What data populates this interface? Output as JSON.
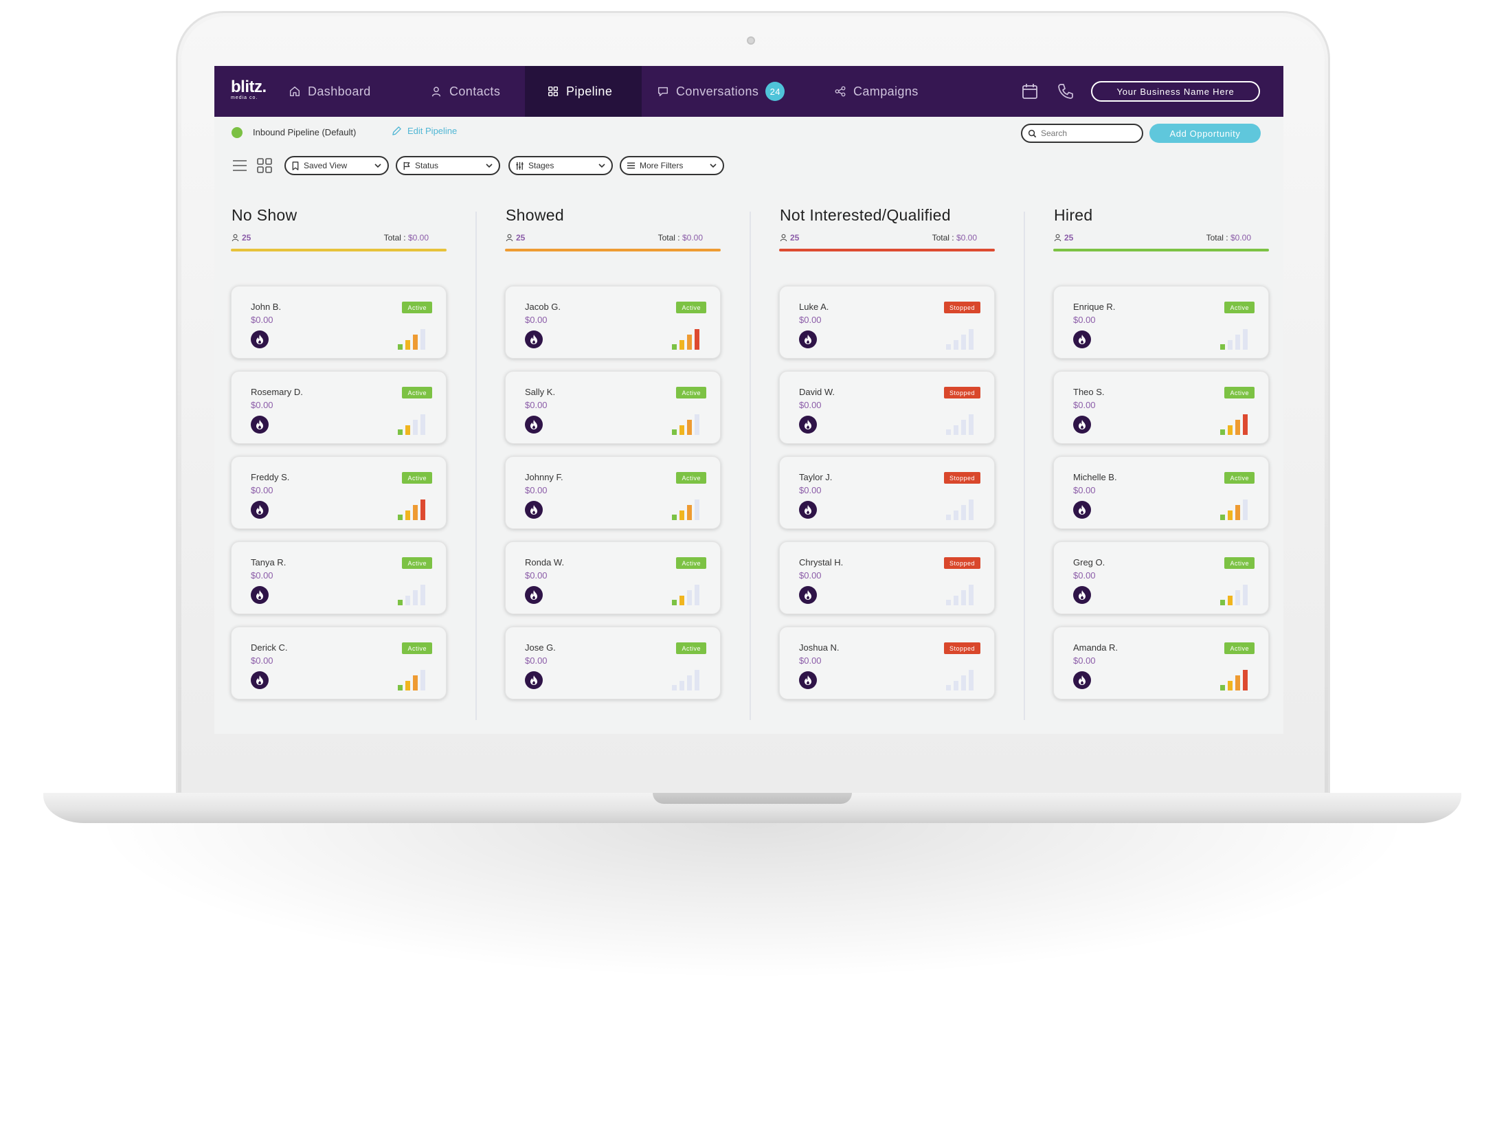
{
  "logo": {
    "main": "blitz.",
    "sub": "media co."
  },
  "nav": {
    "items": [
      {
        "label": "Dashboard",
        "icon": "home-icon"
      },
      {
        "label": "Contacts",
        "icon": "user-icon"
      },
      {
        "label": "Pipeline",
        "icon": "grid-icon",
        "active": true
      },
      {
        "label": "Conversations",
        "icon": "chat-icon",
        "badge": "24"
      },
      {
        "label": "Campaigns",
        "icon": "share-icon"
      }
    ],
    "business_button": "Your Business Name Here"
  },
  "pipeline": {
    "name": "Inbound Pipeline (Default)",
    "edit_label": "Edit Pipeline",
    "search_placeholder": "Search",
    "add_button": "Add Opportunity"
  },
  "filters": {
    "saved_view": "Saved View",
    "status": "Status",
    "stages": "Stages",
    "more": "More Filters"
  },
  "columns": [
    {
      "title": "No Show",
      "count": "25",
      "total_label": "Total :",
      "total": "$0.00",
      "color": "#e7c23a",
      "cards": [
        {
          "name": "John B.",
          "amount": "$0.00",
          "status": "Active",
          "level": 3
        },
        {
          "name": "Rosemary D.",
          "amount": "$0.00",
          "status": "Active",
          "level": 2
        },
        {
          "name": "Freddy S.",
          "amount": "$0.00",
          "status": "Active",
          "level": 4
        },
        {
          "name": "Tanya R.",
          "amount": "$0.00",
          "status": "Active",
          "level": 1
        },
        {
          "name": "Derick C.",
          "amount": "$0.00",
          "status": "Active",
          "level": 3
        }
      ]
    },
    {
      "title": "Showed",
      "count": "25",
      "total_label": "Total :",
      "total": "$0.00",
      "color": "#ee9b32",
      "cards": [
        {
          "name": "Jacob G.",
          "amount": "$0.00",
          "status": "Active",
          "level": 4
        },
        {
          "name": "Sally K.",
          "amount": "$0.00",
          "status": "Active",
          "level": 3
        },
        {
          "name": "Johnny F.",
          "amount": "$0.00",
          "status": "Active",
          "level": 3
        },
        {
          "name": "Ronda W.",
          "amount": "$0.00",
          "status": "Active",
          "level": 2
        },
        {
          "name": "Jose G.",
          "amount": "$0.00",
          "status": "Active",
          "level": 0
        }
      ]
    },
    {
      "title": "Not Interested/Qualified",
      "count": "25",
      "total_label": "Total :",
      "total": "$0.00",
      "color": "#dd4a30",
      "cards": [
        {
          "name": "Luke A.",
          "amount": "$0.00",
          "status": "Stopped",
          "level": 0
        },
        {
          "name": "David W.",
          "amount": "$0.00",
          "status": "Stopped",
          "level": 0
        },
        {
          "name": "Taylor J.",
          "amount": "$0.00",
          "status": "Stopped",
          "level": 0
        },
        {
          "name": "Chrystal H.",
          "amount": "$0.00",
          "status": "Stopped",
          "level": 0
        },
        {
          "name": "Joshua N.",
          "amount": "$0.00",
          "status": "Stopped",
          "level": 0
        }
      ]
    },
    {
      "title": "Hired",
      "count": "25",
      "total_label": "Total :",
      "total": "$0.00",
      "color": "#7cc244",
      "cards": [
        {
          "name": "Enrique R.",
          "amount": "$0.00",
          "status": "Active",
          "level": 1
        },
        {
          "name": "Theo S.",
          "amount": "$0.00",
          "status": "Active",
          "level": 4
        },
        {
          "name": "Michelle B.",
          "amount": "$0.00",
          "status": "Active",
          "level": 3
        },
        {
          "name": "Greg O.",
          "amount": "$0.00",
          "status": "Active",
          "level": 2
        },
        {
          "name": "Amanda R.",
          "amount": "$0.00",
          "status": "Active",
          "level": 4
        }
      ]
    }
  ],
  "colors": {
    "nav_bg": "#361752",
    "accent_purple": "#8b5ca8",
    "active_green": "#7cc244",
    "stopped_red": "#d9472b",
    "accent_cyan": "#5fc7dc",
    "bar_levels": [
      "#7cc244",
      "#f0b51f",
      "#ee9b32",
      "#dd4a30"
    ],
    "bar_empty": "#e1e5f2"
  }
}
